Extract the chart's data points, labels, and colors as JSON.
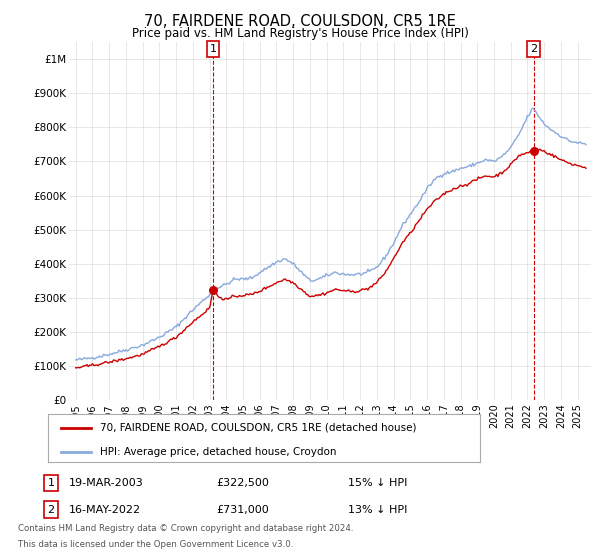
{
  "title": "70, FAIRDENE ROAD, COULSDON, CR5 1RE",
  "subtitle": "Price paid vs. HM Land Registry's House Price Index (HPI)",
  "ylabel_ticks": [
    "£0",
    "£100K",
    "£200K",
    "£300K",
    "£400K",
    "£500K",
    "£600K",
    "£700K",
    "£800K",
    "£900K",
    "£1M"
  ],
  "ytick_values": [
    0,
    100000,
    200000,
    300000,
    400000,
    500000,
    600000,
    700000,
    800000,
    900000,
    1000000
  ],
  "ylim": [
    0,
    1050000
  ],
  "xlim_start": 1994.6,
  "xlim_end": 2025.8,
  "legend_line1": "70, FAIRDENE ROAD, COULSDON, CR5 1RE (detached house)",
  "legend_line2": "HPI: Average price, detached house, Croydon",
  "transaction1_label": "1",
  "transaction1_date": "19-MAR-2003",
  "transaction1_price": "£322,500",
  "transaction1_pct": "15% ↓ HPI",
  "transaction1_year": 2003.21,
  "transaction1_value": 322500,
  "transaction2_label": "2",
  "transaction2_date": "16-MAY-2022",
  "transaction2_price": "£731,000",
  "transaction2_pct": "13% ↓ HPI",
  "transaction2_year": 2022.37,
  "transaction2_value": 731000,
  "footnote_line1": "Contains HM Land Registry data © Crown copyright and database right 2024.",
  "footnote_line2": "This data is licensed under the Open Government Licence v3.0.",
  "line_color_property": "#cc0000",
  "line_color_hpi": "#88aadd",
  "background_color": "#ffffff",
  "grid_color": "#dddddd"
}
